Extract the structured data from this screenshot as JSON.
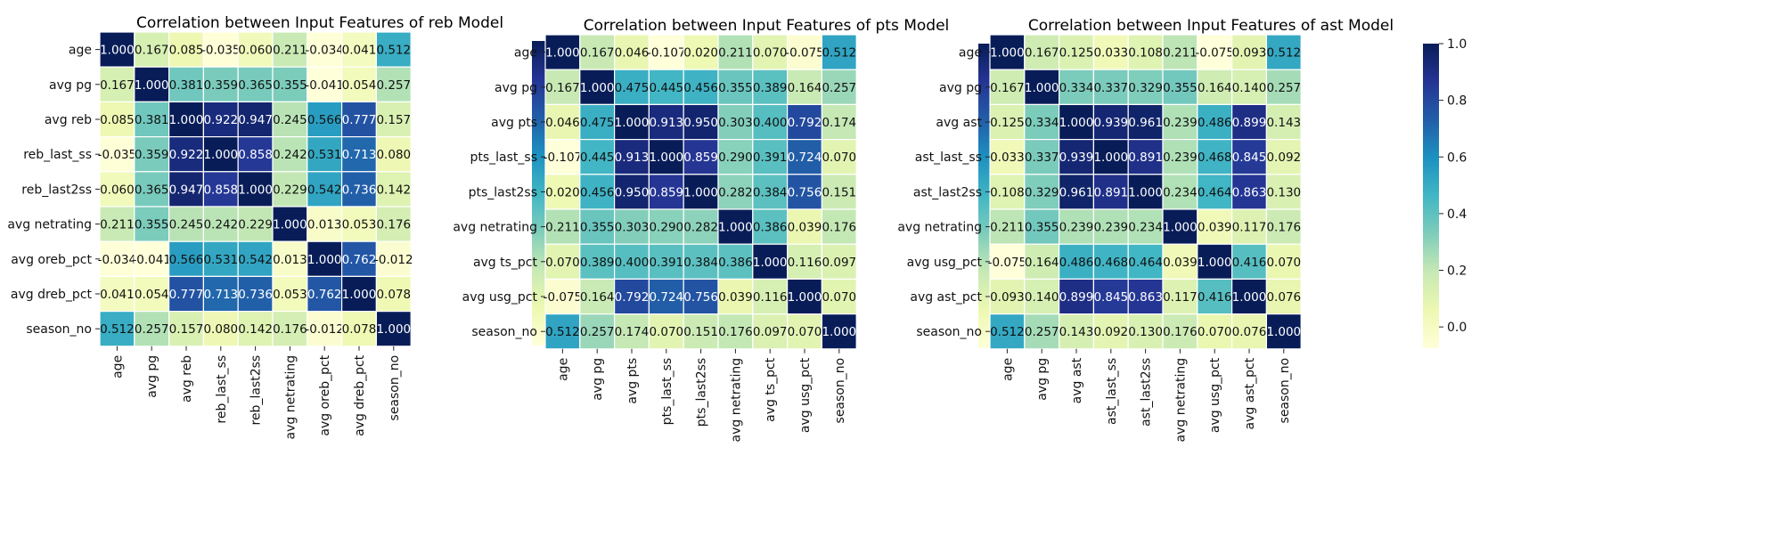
{
  "colorscale": {
    "stops": [
      "#ffffd9",
      "#edf8b1",
      "#c7e9b4",
      "#7fcdbb",
      "#41b6c4",
      "#1d91c0",
      "#225ea8",
      "#253494",
      "#081d58"
    ],
    "cell_border": "#ffffff"
  },
  "chart_data": [
    {
      "type": "heatmap",
      "title": "Correlation between Input Features of reb Model",
      "labels": [
        "age",
        "avg pg",
        "avg reb",
        "reb_last_ss",
        "reb_last2ss",
        "avg netrating",
        "avg oreb_pct",
        "avg dreb_pct",
        "season_no"
      ],
      "values": [
        [
          1.0,
          0.167,
          0.085,
          -0.035,
          0.06,
          0.211,
          -0.034,
          0.041,
          0.512
        ],
        [
          0.167,
          1.0,
          0.381,
          0.359,
          0.365,
          0.355,
          -0.041,
          0.054,
          0.257
        ],
        [
          0.085,
          0.381,
          1.0,
          0.922,
          0.947,
          0.245,
          0.566,
          0.777,
          0.157
        ],
        [
          -0.035,
          0.359,
          0.922,
          1.0,
          0.858,
          0.242,
          0.531,
          0.713,
          0.08
        ],
        [
          0.06,
          0.365,
          0.947,
          0.858,
          1.0,
          0.229,
          0.542,
          0.736,
          0.142
        ],
        [
          0.211,
          0.355,
          0.245,
          0.242,
          0.229,
          1.0,
          0.013,
          0.053,
          0.176
        ],
        [
          -0.034,
          -0.041,
          0.566,
          0.531,
          0.542,
          0.013,
          1.0,
          0.762,
          -0.012
        ],
        [
          0.041,
          0.054,
          0.777,
          0.713,
          0.736,
          0.053,
          0.762,
          1.0,
          0.078
        ],
        [
          0.512,
          0.257,
          0.157,
          0.08,
          0.142,
          0.176,
          -0.012,
          0.078,
          1.0
        ]
      ],
      "vmin": -0.041,
      "vmax": 1.0,
      "colorbar_ticks": [
        "0.0",
        "0.2",
        "0.4",
        "0.6",
        "0.8",
        "1.0"
      ],
      "colorbar_tick_values": [
        0.0,
        0.2,
        0.4,
        0.6,
        0.8,
        1.0
      ]
    },
    {
      "type": "heatmap",
      "title": "Correlation between Input Features of pts Model",
      "labels": [
        "age",
        "avg pg",
        "avg pts",
        "pts_last_ss",
        "pts_last2ss",
        "avg netrating",
        "avg ts_pct",
        "avg usg_pct",
        "season_no"
      ],
      "values": [
        [
          1.0,
          0.167,
          0.046,
          -0.107,
          0.02,
          0.211,
          0.07,
          -0.075,
          0.512
        ],
        [
          0.167,
          1.0,
          0.475,
          0.445,
          0.456,
          0.355,
          0.389,
          0.164,
          0.257
        ],
        [
          0.046,
          0.475,
          1.0,
          0.913,
          0.95,
          0.303,
          0.4,
          0.792,
          0.174
        ],
        [
          -0.107,
          0.445,
          0.913,
          1.0,
          0.859,
          0.29,
          0.391,
          0.724,
          0.07
        ],
        [
          0.02,
          0.456,
          0.95,
          0.859,
          1.0,
          0.282,
          0.384,
          0.756,
          0.151
        ],
        [
          0.211,
          0.355,
          0.303,
          0.29,
          0.282,
          1.0,
          0.386,
          0.039,
          0.176
        ],
        [
          0.07,
          0.389,
          0.4,
          0.391,
          0.384,
          0.386,
          1.0,
          0.116,
          0.097
        ],
        [
          -0.075,
          0.164,
          0.792,
          0.724,
          0.756,
          0.039,
          0.116,
          1.0,
          0.07
        ],
        [
          0.512,
          0.257,
          0.174,
          0.07,
          0.151,
          0.176,
          0.097,
          0.07,
          1.0
        ]
      ],
      "vmin": -0.107,
      "vmax": 1.0,
      "colorbar_ticks": [
        "0.0",
        "0.2",
        "0.4",
        "0.6",
        "0.8",
        "1.0"
      ],
      "colorbar_tick_values": [
        0.0,
        0.2,
        0.4,
        0.6,
        0.8,
        1.0
      ]
    },
    {
      "type": "heatmap",
      "title": "Correlation between Input Features of ast Model",
      "labels": [
        "age",
        "avg pg",
        "avg ast",
        "ast_last_ss",
        "ast_last2ss",
        "avg netrating",
        "avg usg_pct",
        "avg ast_pct",
        "season_no"
      ],
      "values": [
        [
          1.0,
          0.167,
          0.125,
          0.033,
          0.108,
          0.211,
          -0.075,
          0.093,
          0.512
        ],
        [
          0.167,
          1.0,
          0.334,
          0.337,
          0.329,
          0.355,
          0.164,
          0.14,
          0.257
        ],
        [
          0.125,
          0.334,
          1.0,
          0.939,
          0.961,
          0.239,
          0.486,
          0.899,
          0.143
        ],
        [
          0.033,
          0.337,
          0.939,
          1.0,
          0.891,
          0.239,
          0.468,
          0.845,
          0.092
        ],
        [
          0.108,
          0.329,
          0.961,
          0.891,
          1.0,
          0.234,
          0.464,
          0.863,
          0.13
        ],
        [
          0.211,
          0.355,
          0.239,
          0.239,
          0.234,
          1.0,
          0.039,
          0.117,
          0.176
        ],
        [
          -0.075,
          0.164,
          0.486,
          0.468,
          0.464,
          0.039,
          1.0,
          0.416,
          0.07
        ],
        [
          0.093,
          0.14,
          0.899,
          0.845,
          0.863,
          0.117,
          0.416,
          1.0,
          0.076
        ],
        [
          0.512,
          0.257,
          0.143,
          0.092,
          0.13,
          0.176,
          0.07,
          0.076,
          1.0
        ]
      ],
      "vmin": -0.075,
      "vmax": 1.0,
      "colorbar_ticks": [
        "0.0",
        "0.2",
        "0.4",
        "0.6",
        "0.8",
        "1.0"
      ],
      "colorbar_tick_values": [
        0.0,
        0.2,
        0.4,
        0.6,
        0.8,
        1.0
      ]
    }
  ]
}
